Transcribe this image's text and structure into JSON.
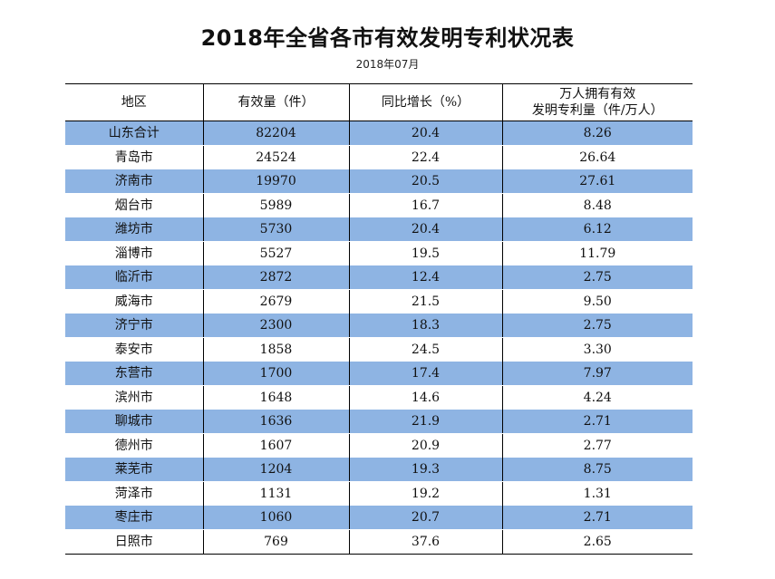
{
  "title": "2018年全省各市有效发明专利状况表",
  "subtitle": "2018年07月",
  "colors": {
    "band": "#8eb4e3"
  },
  "table": {
    "headers": [
      "地区",
      "有效量（件）",
      "同比增长（%）",
      "万人拥有有效\n发明专利量（件/万人）"
    ],
    "header_line1": "万人拥有有效",
    "header_line2": "发明专利量（件/万人）",
    "rows": [
      [
        "山东合计",
        "82204",
        "20.4",
        "8.26"
      ],
      [
        "青岛市",
        "24524",
        "22.4",
        "26.64"
      ],
      [
        "济南市",
        "19970",
        "20.5",
        "27.61"
      ],
      [
        "烟台市",
        "5989",
        "16.7",
        "8.48"
      ],
      [
        "潍坊市",
        "5730",
        "20.4",
        "6.12"
      ],
      [
        "淄博市",
        "5527",
        "19.5",
        "11.79"
      ],
      [
        "临沂市",
        "2872",
        "12.4",
        "2.75"
      ],
      [
        "威海市",
        "2679",
        "21.5",
        "9.50"
      ],
      [
        "济宁市",
        "2300",
        "18.3",
        "2.75"
      ],
      [
        "泰安市",
        "1858",
        "24.5",
        "3.30"
      ],
      [
        "东营市",
        "1700",
        "17.4",
        "7.97"
      ],
      [
        "滨州市",
        "1648",
        "14.6",
        "4.24"
      ],
      [
        "聊城市",
        "1636",
        "21.9",
        "2.71"
      ],
      [
        "德州市",
        "1607",
        "20.9",
        "2.77"
      ],
      [
        "莱芜市",
        "1204",
        "19.3",
        "8.75"
      ],
      [
        "菏泽市",
        "1131",
        "19.2",
        "1.31"
      ],
      [
        "枣庄市",
        "1060",
        "20.7",
        "2.71"
      ],
      [
        "日照市",
        "769",
        "37.6",
        "2.65"
      ]
    ]
  }
}
